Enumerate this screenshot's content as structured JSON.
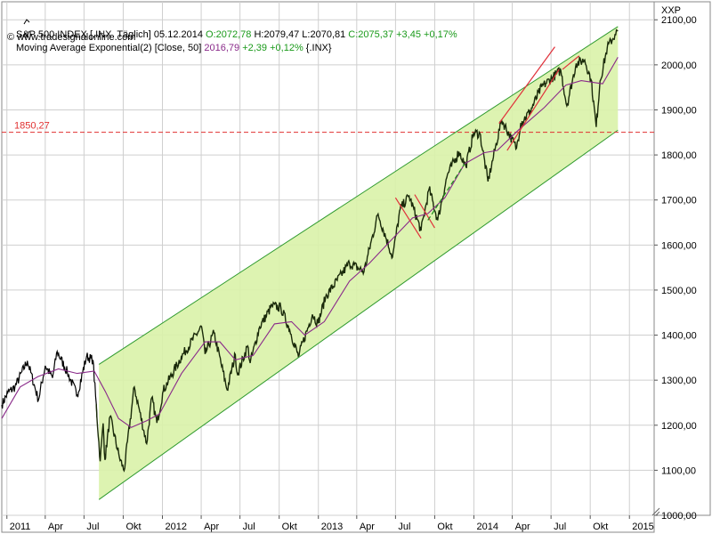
{
  "header": {
    "line1": {
      "symbol": "S&P 500 INDEX [.INX  Täglich]",
      "date": "05.12.2014",
      "open": "O:2072,78",
      "high": "H:2079,47",
      "low": "L:2070,81",
      "close": "C:2075,37",
      "change": "+3,45",
      "change_pct": "+0,17%"
    },
    "line2": {
      "indicator": "Moving Average Exponential(2) [Close, 50]",
      "value": "2016,79",
      "change": "+2,39",
      "change_pct": "+0,12%",
      "ref": "{.INX}"
    },
    "line3": {
      "copyright": "© www.tradesignalonline.com"
    }
  },
  "axis_corner_label": "XXP",
  "hline_label": "1850,27",
  "colors": {
    "price": "#1a2a0a",
    "price_early": "#000000",
    "ema": "#8a2a8a",
    "channel_fill": "#d9f2a8",
    "channel_line": "#2f9a2f",
    "hline": "#e03030",
    "grid": "#cfcfcf",
    "green_text": "#1a9a1a"
  },
  "chart_data": {
    "type": "line",
    "title": "S&P 500 INDEX [.INX  Täglich]",
    "x_range": [
      "2010-12-20",
      "2015-02-28"
    ],
    "ylim": [
      1000,
      2140
    ],
    "y_ticks": [
      "1000,00",
      "1100,00",
      "1200,00",
      "1300,00",
      "1400,00",
      "1500,00",
      "1600,00",
      "1700,00",
      "1800,00",
      "1900,00",
      "2000,00",
      "2100,00"
    ],
    "y_tick_values": [
      1000,
      1100,
      1200,
      1300,
      1400,
      1500,
      1600,
      1700,
      1800,
      1900,
      2000,
      2100
    ],
    "x_ticks": [
      {
        "label": "2011",
        "date": "2011-01-01"
      },
      {
        "label": "Apr",
        "date": "2011-04-01"
      },
      {
        "label": "Jul",
        "date": "2011-07-01"
      },
      {
        "label": "Okt",
        "date": "2011-10-01"
      },
      {
        "label": "2012",
        "date": "2012-01-01"
      },
      {
        "label": "Apr",
        "date": "2012-04-01"
      },
      {
        "label": "Jul",
        "date": "2012-07-01"
      },
      {
        "label": "Okt",
        "date": "2012-10-01"
      },
      {
        "label": "2013",
        "date": "2013-01-01"
      },
      {
        "label": "Apr",
        "date": "2013-04-01"
      },
      {
        "label": "Jul",
        "date": "2013-07-01"
      },
      {
        "label": "Okt",
        "date": "2013-10-01"
      },
      {
        "label": "2014",
        "date": "2014-01-01"
      },
      {
        "label": "Apr",
        "date": "2014-04-01"
      },
      {
        "label": "Jul",
        "date": "2014-07-01"
      },
      {
        "label": "Okt",
        "date": "2014-10-01"
      },
      {
        "label": "2015",
        "date": "2015-01-01"
      }
    ],
    "grid": true,
    "series": [
      {
        "name": "S&P 500 INDEX",
        "points": [
          [
            "2010-12-20",
            1245
          ],
          [
            "2011-01-03",
            1272
          ],
          [
            "2011-01-20",
            1285
          ],
          [
            "2011-02-18",
            1343
          ],
          [
            "2011-03-16",
            1256
          ],
          [
            "2011-04-01",
            1332
          ],
          [
            "2011-04-18",
            1305
          ],
          [
            "2011-04-29",
            1364
          ],
          [
            "2011-05-23",
            1317
          ],
          [
            "2011-06-15",
            1267
          ],
          [
            "2011-07-07",
            1353
          ],
          [
            "2011-07-22",
            1345
          ],
          [
            "2011-08-08",
            1120
          ],
          [
            "2011-08-15",
            1204
          ],
          [
            "2011-08-19",
            1123
          ],
          [
            "2011-08-31",
            1219
          ],
          [
            "2011-09-22",
            1129
          ],
          [
            "2011-10-03",
            1099
          ],
          [
            "2011-10-27",
            1285
          ],
          [
            "2011-11-25",
            1159
          ],
          [
            "2011-12-07",
            1261
          ],
          [
            "2011-12-19",
            1205
          ],
          [
            "2012-01-03",
            1277
          ],
          [
            "2012-02-14",
            1351
          ],
          [
            "2012-04-02",
            1419
          ],
          [
            "2012-04-10",
            1358
          ],
          [
            "2012-05-01",
            1405
          ],
          [
            "2012-06-01",
            1278
          ],
          [
            "2012-06-20",
            1357
          ],
          [
            "2012-06-25",
            1313
          ],
          [
            "2012-07-19",
            1376
          ],
          [
            "2012-07-25",
            1338
          ],
          [
            "2012-08-16",
            1418
          ],
          [
            "2012-09-14",
            1465
          ],
          [
            "2012-10-05",
            1461
          ],
          [
            "2012-10-26",
            1411
          ],
          [
            "2012-11-15",
            1353
          ],
          [
            "2012-12-18",
            1446
          ],
          [
            "2012-12-31",
            1426
          ],
          [
            "2013-01-18",
            1485
          ],
          [
            "2013-03-15",
            1560
          ],
          [
            "2013-04-18",
            1541
          ],
          [
            "2013-05-21",
            1669
          ],
          [
            "2013-06-24",
            1573
          ],
          [
            "2013-07-12",
            1680
          ],
          [
            "2013-08-02",
            1709
          ],
          [
            "2013-08-30",
            1632
          ],
          [
            "2013-09-18",
            1725
          ],
          [
            "2013-10-08",
            1655
          ],
          [
            "2013-10-31",
            1757
          ],
          [
            "2013-11-27",
            1807
          ],
          [
            "2013-12-13",
            1775
          ],
          [
            "2013-12-31",
            1848
          ],
          [
            "2014-01-15",
            1848
          ],
          [
            "2014-02-03",
            1741
          ],
          [
            "2014-03-07",
            1878
          ],
          [
            "2014-04-11",
            1815
          ],
          [
            "2014-04-21",
            1871
          ],
          [
            "2014-05-13",
            1897
          ],
          [
            "2014-06-09",
            1951
          ],
          [
            "2014-07-24",
            1988
          ],
          [
            "2014-08-07",
            1909
          ],
          [
            "2014-08-29",
            2003
          ],
          [
            "2014-09-18",
            2011
          ],
          [
            "2014-10-03",
            1967
          ],
          [
            "2014-10-15",
            1862
          ],
          [
            "2014-10-24",
            1964
          ],
          [
            "2014-11-10",
            2038
          ],
          [
            "2014-11-28",
            2067
          ],
          [
            "2014-12-05",
            2075
          ]
        ]
      },
      {
        "name": "Moving Average Exponential(2) [Close, 50]",
        "points": [
          [
            "2010-12-20",
            1215
          ],
          [
            "2011-02-01",
            1285
          ],
          [
            "2011-03-15",
            1308
          ],
          [
            "2011-05-02",
            1325
          ],
          [
            "2011-06-15",
            1315
          ],
          [
            "2011-07-25",
            1320
          ],
          [
            "2011-08-20",
            1275
          ],
          [
            "2011-09-20",
            1215
          ],
          [
            "2011-10-20",
            1195
          ],
          [
            "2011-11-25",
            1210
          ],
          [
            "2011-12-25",
            1225
          ],
          [
            "2012-02-15",
            1315
          ],
          [
            "2012-04-10",
            1385
          ],
          [
            "2012-05-15",
            1385
          ],
          [
            "2012-06-20",
            1345
          ],
          [
            "2012-08-01",
            1355
          ],
          [
            "2012-09-20",
            1425
          ],
          [
            "2012-10-30",
            1430
          ],
          [
            "2012-11-30",
            1400
          ],
          [
            "2013-01-15",
            1430
          ],
          [
            "2013-03-15",
            1520
          ],
          [
            "2013-05-01",
            1560
          ],
          [
            "2013-06-20",
            1610
          ],
          [
            "2013-08-10",
            1660
          ],
          [
            "2013-09-15",
            1670
          ],
          [
            "2013-10-25",
            1705
          ],
          [
            "2013-12-10",
            1780
          ],
          [
            "2014-01-25",
            1805
          ],
          [
            "2014-02-25",
            1810
          ],
          [
            "2014-04-15",
            1855
          ],
          [
            "2014-06-15",
            1905
          ],
          [
            "2014-08-05",
            1955
          ],
          [
            "2014-09-10",
            1965
          ],
          [
            "2014-10-15",
            1960
          ],
          [
            "2014-10-30",
            1958
          ],
          [
            "2014-12-05",
            2017
          ]
        ]
      }
    ],
    "horizontal_lines": [
      {
        "label": "1850,27",
        "value": 1850.27
      }
    ],
    "trend_channel": {
      "upper": [
        [
          "2011-08-05",
          1335
        ],
        [
          "2014-12-05",
          2085
        ]
      ],
      "lower": [
        [
          "2011-08-05",
          1035
        ],
        [
          "2014-12-05",
          1855
        ]
      ]
    },
    "trend_lines": [
      {
        "color": "red",
        "points": [
          [
            "2014-03-01",
            1870
          ],
          [
            "2014-07-10",
            2040
          ]
        ]
      },
      {
        "color": "red",
        "points": [
          [
            "2014-03-20",
            1810
          ],
          [
            "2014-07-20",
            1990
          ]
        ]
      },
      {
        "color": "red",
        "points": [
          [
            "2014-07-28",
            1990
          ],
          [
            "2014-09-05",
            2020
          ]
        ]
      },
      {
        "color": "red",
        "points": [
          [
            "2013-07-01",
            1705
          ],
          [
            "2013-08-30",
            1615
          ]
        ]
      },
      {
        "color": "red",
        "points": [
          [
            "2013-08-15",
            1712
          ],
          [
            "2013-10-01",
            1638
          ]
        ]
      },
      {
        "color": "green-dashed",
        "points": [
          [
            "2013-09-15",
            1655
          ],
          [
            "2013-12-10",
            1780
          ]
        ]
      }
    ]
  }
}
